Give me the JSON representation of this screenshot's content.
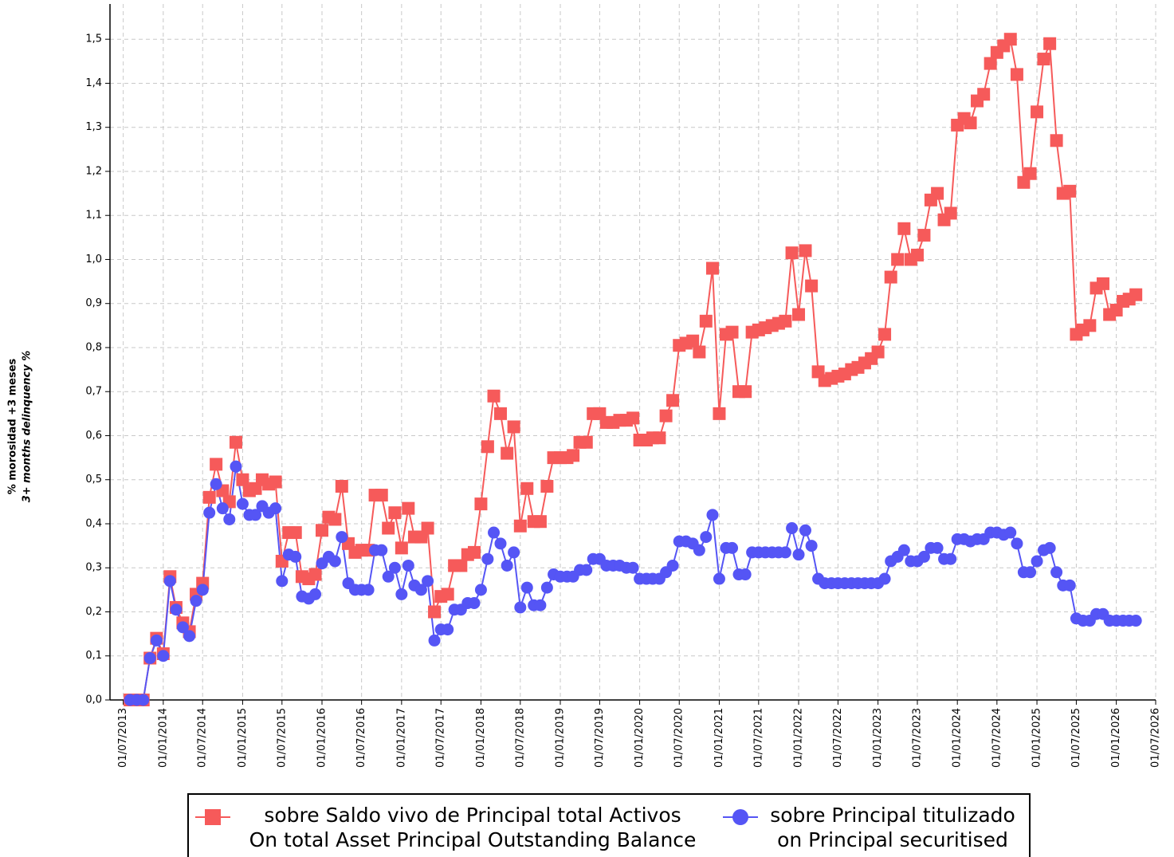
{
  "chart_data": {
    "type": "line",
    "ylabel": [
      "% morosidad +3 meses",
      "3+ months delinquency %"
    ],
    "grid": true,
    "legend": "bottom",
    "xlim": [
      "01/05/2013",
      "01/07/2026"
    ],
    "xticks": [
      "01/07/2013",
      "01/01/2014",
      "01/07/2014",
      "01/01/2015",
      "01/07/2015",
      "01/01/2016",
      "01/07/2016",
      "01/01/2017",
      "01/07/2017",
      "01/01/2018",
      "01/07/2018",
      "01/01/2019",
      "01/07/2019",
      "01/01/2020",
      "01/07/2020",
      "01/01/2021",
      "01/07/2021",
      "01/01/2022",
      "01/07/2022",
      "01/01/2023",
      "01/07/2023",
      "01/01/2024",
      "01/07/2024",
      "01/01/2025",
      "01/07/2025",
      "01/01/2026",
      "01/07/2026"
    ],
    "ylim": [
      0,
      1.58
    ],
    "yticks": [
      {
        "value": 0,
        "label": "0,0"
      },
      {
        "value": 0.1,
        "label": "0,1"
      },
      {
        "value": 0.2,
        "label": "0,2"
      },
      {
        "value": 0.3,
        "label": "0,3"
      },
      {
        "value": 0.4,
        "label": "0,4"
      },
      {
        "value": 0.5,
        "label": "0,5"
      },
      {
        "value": 0.6,
        "label": "0,6"
      },
      {
        "value": 0.7,
        "label": "0,7"
      },
      {
        "value": 0.8,
        "label": "0,8"
      },
      {
        "value": 0.9,
        "label": "0,9"
      },
      {
        "value": 1.0,
        "label": "1,0"
      },
      {
        "value": 1.1,
        "label": "1,1"
      },
      {
        "value": 1.2,
        "label": "1,2"
      },
      {
        "value": 1.3,
        "label": "1,3"
      },
      {
        "value": 1.4,
        "label": "1,4"
      },
      {
        "value": 1.5,
        "label": "1,5"
      }
    ],
    "x": [
      "01/08/2013",
      "01/09/2013",
      "01/10/2013",
      "01/11/2013",
      "01/12/2013",
      "01/01/2014",
      "01/02/2014",
      "01/03/2014",
      "01/04/2014",
      "01/05/2014",
      "01/06/2014",
      "01/07/2014",
      "01/08/2014",
      "01/09/2014",
      "01/10/2014",
      "01/11/2014",
      "01/12/2014",
      "01/01/2015",
      "01/02/2015",
      "01/03/2015",
      "01/04/2015",
      "01/05/2015",
      "01/06/2015",
      "01/07/2015",
      "01/08/2015",
      "01/09/2015",
      "01/10/2015",
      "01/11/2015",
      "01/12/2015",
      "01/01/2016",
      "01/02/2016",
      "01/03/2016",
      "01/04/2016",
      "01/05/2016",
      "01/06/2016",
      "01/07/2016",
      "01/08/2016",
      "01/09/2016",
      "01/10/2016",
      "01/11/2016",
      "01/12/2016",
      "01/01/2017",
      "01/02/2017",
      "01/03/2017",
      "01/04/2017",
      "01/05/2017",
      "01/06/2017",
      "01/07/2017",
      "01/08/2017",
      "01/09/2017",
      "01/10/2017",
      "01/11/2017",
      "01/12/2017",
      "01/01/2018",
      "01/02/2018",
      "01/03/2018",
      "01/04/2018",
      "01/05/2018",
      "01/06/2018",
      "01/07/2018",
      "01/08/2018",
      "01/09/2018",
      "01/10/2018",
      "01/11/2018",
      "01/12/2018",
      "01/01/2019",
      "01/02/2019",
      "01/03/2019",
      "01/04/2019",
      "01/05/2019",
      "01/06/2019",
      "01/07/2019",
      "01/08/2019",
      "01/09/2019",
      "01/10/2019",
      "01/11/2019",
      "01/12/2019",
      "01/01/2020",
      "01/02/2020",
      "01/03/2020",
      "01/04/2020",
      "01/05/2020",
      "01/06/2020",
      "01/07/2020",
      "01/08/2020",
      "01/09/2020",
      "01/10/2020",
      "01/11/2020",
      "01/12/2020",
      "01/01/2021",
      "01/02/2021",
      "01/03/2021",
      "01/04/2021",
      "01/05/2021",
      "01/06/2021",
      "01/07/2021",
      "01/08/2021",
      "01/09/2021",
      "01/10/2021",
      "01/11/2021",
      "01/12/2021",
      "01/01/2022",
      "01/02/2022",
      "01/03/2022",
      "01/04/2022",
      "01/05/2022",
      "01/06/2022",
      "01/07/2022",
      "01/08/2022",
      "01/09/2022",
      "01/10/2022",
      "01/11/2022",
      "01/12/2022",
      "01/01/2023",
      "01/02/2023",
      "01/03/2023",
      "01/04/2023",
      "01/05/2023",
      "01/06/2023",
      "01/07/2023",
      "01/08/2023",
      "01/09/2023",
      "01/10/2023",
      "01/11/2023",
      "01/12/2023",
      "01/01/2024",
      "01/02/2024",
      "01/03/2024",
      "01/04/2024",
      "01/05/2024",
      "01/06/2024",
      "01/07/2024",
      "01/08/2024",
      "01/09/2024",
      "01/10/2024",
      "01/11/2024",
      "01/12/2024",
      "01/01/2025",
      "01/02/2025",
      "01/03/2025",
      "01/04/2025",
      "01/05/2025",
      "01/06/2025",
      "01/07/2025",
      "01/08/2025",
      "01/09/2025",
      "01/10/2025",
      "01/11/2025",
      "01/12/2025",
      "01/01/2026",
      "01/02/2026",
      "01/03/2026",
      "01/04/2026"
    ],
    "series": [
      {
        "name": "sobre Saldo vivo de Principal total Activos\nOn total Asset Principal Outstanding Balance",
        "color": "#f65a5a",
        "marker": "square",
        "values": [
          0,
          0,
          0,
          0.095,
          0.14,
          0.105,
          0.28,
          0.21,
          0.175,
          0.155,
          0.24,
          0.265,
          0.46,
          0.535,
          0.475,
          0.45,
          0.585,
          0.5,
          0.475,
          0.48,
          0.5,
          0.49,
          0.495,
          0.315,
          0.38,
          0.38,
          0.28,
          0.275,
          0.285,
          0.385,
          0.415,
          0.41,
          0.485,
          0.355,
          0.335,
          0.34,
          0.34,
          0.465,
          0.465,
          0.39,
          0.425,
          0.345,
          0.435,
          0.37,
          0.37,
          0.39,
          0.2,
          0.235,
          0.24,
          0.305,
          0.305,
          0.33,
          0.335,
          0.445,
          0.575,
          0.69,
          0.65,
          0.56,
          0.62,
          0.395,
          0.48,
          0.405,
          0.405,
          0.485,
          0.55,
          0.55,
          0.55,
          0.555,
          0.585,
          0.585,
          0.65,
          0.65,
          0.63,
          0.63,
          0.635,
          0.635,
          0.64,
          0.59,
          0.59,
          0.595,
          0.595,
          0.645,
          0.68,
          0.805,
          0.81,
          0.815,
          0.79,
          0.86,
          0.98,
          0.65,
          0.83,
          0.835,
          0.7,
          0.7,
          0.835,
          0.84,
          0.845,
          0.85,
          0.855,
          0.86,
          1.015,
          0.875,
          1.02,
          0.94,
          0.745,
          0.725,
          0.73,
          0.735,
          0.74,
          0.75,
          0.755,
          0.765,
          0.775,
          0.79,
          0.83,
          0.96,
          1.0,
          1.07,
          1.0,
          1.01,
          1.055,
          1.135,
          1.15,
          1.09,
          1.105,
          1.305,
          1.32,
          1.31,
          1.36,
          1.375,
          1.445,
          1.47,
          1.485,
          1.5,
          1.42,
          1.175,
          1.195,
          1.335,
          1.455,
          1.49,
          1.27,
          1.15,
          1.155,
          0.83,
          0.84,
          0.85,
          0.935,
          0.945,
          0.875,
          0.885,
          0.905,
          0.91,
          0.92
        ]
      },
      {
        "name": "sobre Principal titulizado\non Principal securitised",
        "color": "#5555f5",
        "marker": "circle",
        "values": [
          0,
          0,
          0,
          0.095,
          0.135,
          0.1,
          0.27,
          0.205,
          0.165,
          0.145,
          0.225,
          0.25,
          0.425,
          0.49,
          0.435,
          0.41,
          0.53,
          0.445,
          0.42,
          0.42,
          0.44,
          0.425,
          0.435,
          0.27,
          0.33,
          0.325,
          0.235,
          0.23,
          0.24,
          0.31,
          0.325,
          0.315,
          0.37,
          0.265,
          0.25,
          0.25,
          0.25,
          0.34,
          0.34,
          0.28,
          0.3,
          0.24,
          0.305,
          0.26,
          0.25,
          0.27,
          0.135,
          0.16,
          0.16,
          0.205,
          0.205,
          0.22,
          0.22,
          0.25,
          0.32,
          0.38,
          0.355,
          0.305,
          0.335,
          0.21,
          0.255,
          0.215,
          0.215,
          0.255,
          0.285,
          0.28,
          0.28,
          0.28,
          0.295,
          0.295,
          0.32,
          0.32,
          0.305,
          0.305,
          0.305,
          0.3,
          0.3,
          0.275,
          0.275,
          0.275,
          0.275,
          0.29,
          0.305,
          0.36,
          0.36,
          0.355,
          0.34,
          0.37,
          0.42,
          0.275,
          0.345,
          0.345,
          0.285,
          0.285,
          0.335,
          0.335,
          0.335,
          0.335,
          0.335,
          0.335,
          0.39,
          0.33,
          0.385,
          0.35,
          0.275,
          0.265,
          0.265,
          0.265,
          0.265,
          0.265,
          0.265,
          0.265,
          0.265,
          0.265,
          0.275,
          0.315,
          0.325,
          0.34,
          0.315,
          0.315,
          0.325,
          0.345,
          0.345,
          0.32,
          0.32,
          0.365,
          0.365,
          0.36,
          0.365,
          0.365,
          0.38,
          0.38,
          0.375,
          0.38,
          0.355,
          0.29,
          0.29,
          0.315,
          0.34,
          0.345,
          0.29,
          0.26,
          0.26,
          0.185,
          0.18,
          0.18,
          0.195,
          0.195,
          0.18,
          0.18,
          0.18,
          0.18,
          0.18
        ]
      }
    ]
  }
}
